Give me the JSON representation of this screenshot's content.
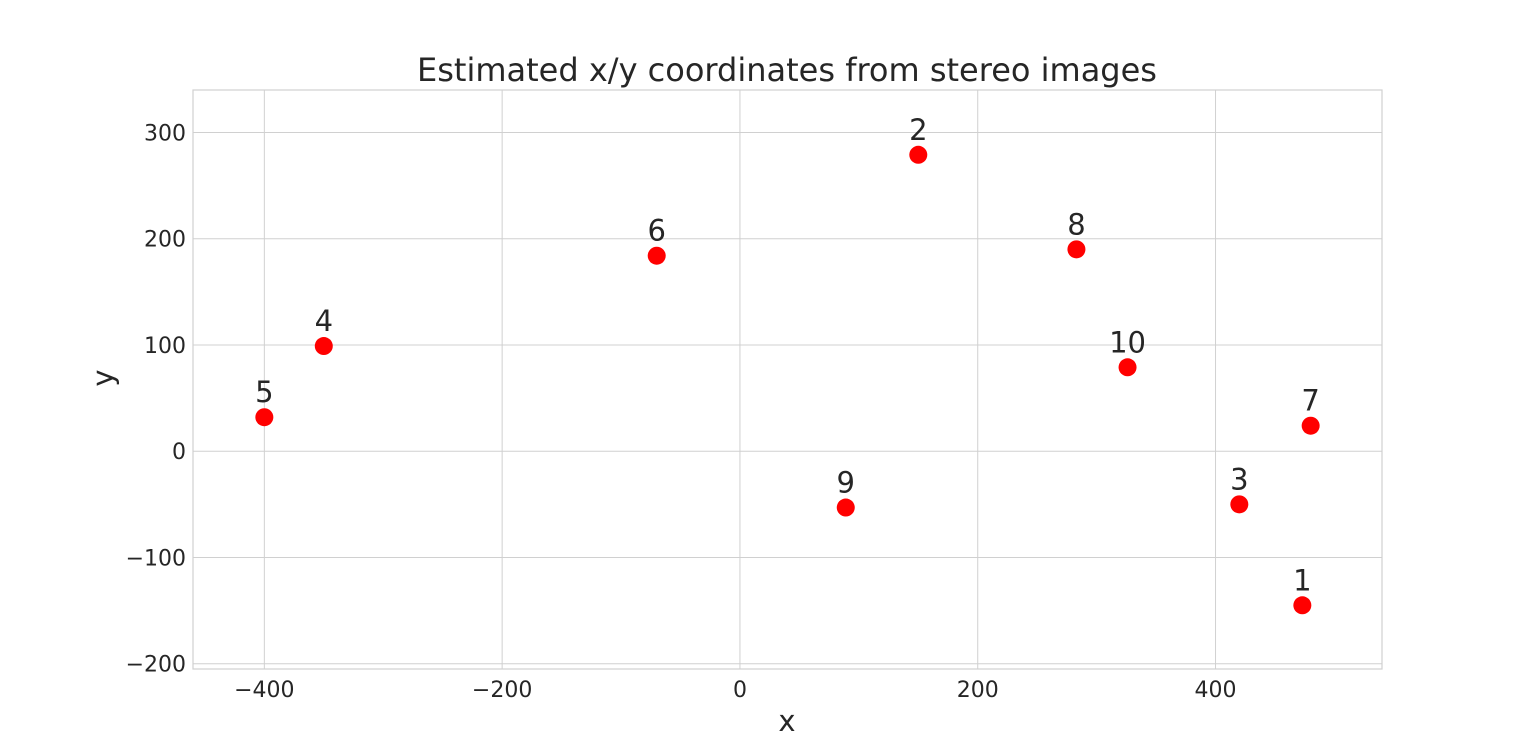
{
  "chart_data": {
    "type": "scatter",
    "title": "Estimated x/y coordinates from stereo images",
    "xlabel": "x",
    "ylabel": "y",
    "xlim": [
      -460,
      540
    ],
    "ylim": [
      -205,
      340
    ],
    "xticks": [
      -400,
      -200,
      0,
      200,
      400
    ],
    "yticks": [
      -200,
      -100,
      0,
      100,
      200,
      300
    ],
    "xtick_labels": [
      "−400",
      "−200",
      "0",
      "200",
      "400"
    ],
    "ytick_labels": [
      "−200",
      "−100",
      "0",
      "100",
      "200",
      "300"
    ],
    "grid": true,
    "marker_color": "#ff0000",
    "grid_color": "#d0d0d0",
    "text_color": "#262626",
    "points": [
      {
        "label": "1",
        "x": 473,
        "y": -145
      },
      {
        "label": "2",
        "x": 150,
        "y": 279
      },
      {
        "label": "3",
        "x": 420,
        "y": -50
      },
      {
        "label": "4",
        "x": -350,
        "y": 99
      },
      {
        "label": "5",
        "x": -400,
        "y": 32
      },
      {
        "label": "6",
        "x": -70,
        "y": 184
      },
      {
        "label": "7",
        "x": 480,
        "y": 24
      },
      {
        "label": "8",
        "x": 283,
        "y": 190
      },
      {
        "label": "9",
        "x": 89,
        "y": -53
      },
      {
        "label": "10",
        "x": 326,
        "y": 79
      }
    ]
  }
}
